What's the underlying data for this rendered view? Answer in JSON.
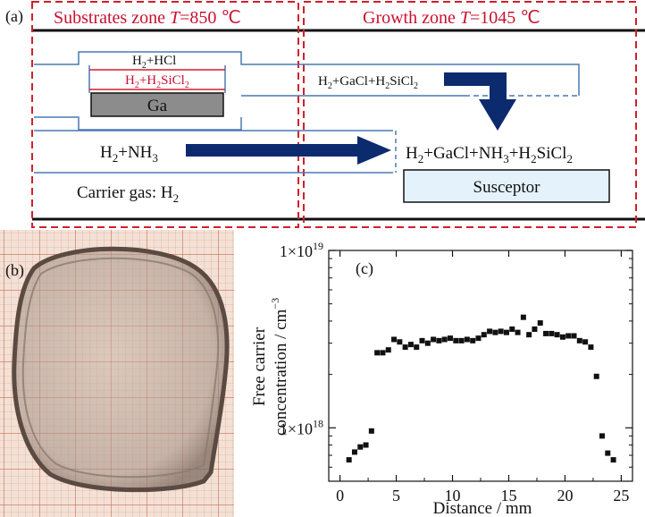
{
  "panel_a": {
    "label": "(a)",
    "zone1": {
      "prefix": "Substrates zone ",
      "var": "T",
      "suffix": "=850 ℃"
    },
    "zone2": {
      "prefix": "Growth zone ",
      "var": "T",
      "suffix": "=1045 ℃"
    },
    "hcl_line": {
      "a": "H",
      "a_sub": "2",
      "b": "+HCl"
    },
    "sicl_line": {
      "a": "H",
      "a_sub": "2",
      "b": "+H",
      "b_sub": "2",
      "c": "SiCl",
      "c_sub": "2"
    },
    "ga_label": "Ga",
    "gacl_label": {
      "a": "H",
      "a_sub": "2",
      "b": "+GaCl+H",
      "b_sub": "2",
      "c": "SiCl",
      "c_sub": "2"
    },
    "nh3_label": {
      "a": "H",
      "a_sub": "2",
      "b": "+NH",
      "b_sub": "3"
    },
    "mix_label": {
      "a": "H",
      "a_sub": "2",
      "b": "+GaCl+NH",
      "b_sub": "3",
      "c": "+H",
      "c_sub": "2",
      "d": "SiCl",
      "d_sub": "2"
    },
    "carrier_label": {
      "a": "Carrier gas: H",
      "a_sub": "2"
    },
    "susceptor_label": "Susceptor",
    "colors": {
      "zone_border": "#d21f2b",
      "arrow": "#0c2b6e",
      "ga_fill": "#8c8c8c",
      "susceptor_fill": "#e4f2fb",
      "tube": "#4a78b0"
    }
  },
  "panel_b": {
    "label": "(b)"
  },
  "panel_c": {
    "label": "(c)"
  },
  "chart_data": {
    "type": "scatter",
    "xlabel": "Distance / mm",
    "ylabel_line1": "Free carrier",
    "ylabel_line2": "concentration / cm",
    "ylabel_sup": "−3",
    "xlim": [
      -1,
      26
    ],
    "ylim": [
      5e+17,
      1e+19
    ],
    "yscale": "log",
    "x_ticks": [
      0,
      5,
      10,
      15,
      20,
      25
    ],
    "y_tick_labels": [
      {
        "value": 1e+19,
        "mant": "1×10",
        "exp": "19"
      },
      {
        "value": 1e+18,
        "mant": "1×10",
        "exp": "18"
      }
    ],
    "points": [
      [
        0.8,
        6.6e+17
      ],
      [
        1.3,
        7.3e+17
      ],
      [
        1.8,
        7.8e+17
      ],
      [
        2.3,
        8e+17
      ],
      [
        2.8,
        9.6e+17
      ],
      [
        3.3,
        2.65e+18
      ],
      [
        3.8,
        2.65e+18
      ],
      [
        4.3,
        2.75e+18
      ],
      [
        4.8,
        3.15e+18
      ],
      [
        5.3,
        3.05e+18
      ],
      [
        5.8,
        2.85e+18
      ],
      [
        6.3,
        2.95e+18
      ],
      [
        6.8,
        2.85e+18
      ],
      [
        7.3,
        3.1e+18
      ],
      [
        7.8,
        3e+18
      ],
      [
        8.3,
        3.15e+18
      ],
      [
        8.8,
        3.1e+18
      ],
      [
        9.3,
        3.15e+18
      ],
      [
        9.8,
        3.2e+18
      ],
      [
        10.3,
        3.1e+18
      ],
      [
        10.8,
        3.1e+18
      ],
      [
        11.3,
        3.15e+18
      ],
      [
        11.8,
        3.1e+18
      ],
      [
        12.3,
        3.2e+18
      ],
      [
        12.8,
        3.35e+18
      ],
      [
        13.3,
        3.5e+18
      ],
      [
        13.8,
        3.45e+18
      ],
      [
        14.3,
        3.5e+18
      ],
      [
        14.8,
        3.45e+18
      ],
      [
        15.3,
        3.6e+18
      ],
      [
        15.8,
        3.45e+18
      ],
      [
        16.3,
        4.2e+18
      ],
      [
        16.8,
        3.35e+18
      ],
      [
        17.3,
        3.6e+18
      ],
      [
        17.8,
        3.9e+18
      ],
      [
        18.3,
        3.4e+18
      ],
      [
        18.8,
        3.4e+18
      ],
      [
        19.3,
        3.35e+18
      ],
      [
        19.8,
        3.25e+18
      ],
      [
        20.3,
        3.3e+18
      ],
      [
        20.8,
        3.3e+18
      ],
      [
        21.3,
        3.1e+18
      ],
      [
        21.8,
        3.05e+18
      ],
      [
        22.3,
        2.85e+18
      ],
      [
        22.8,
        1.95e+18
      ],
      [
        23.3,
        9e+17
      ],
      [
        23.8,
        7.2e+17
      ],
      [
        24.3,
        6.6e+17
      ]
    ],
    "marker": "square",
    "marker_color": "#111111",
    "grid": false
  }
}
